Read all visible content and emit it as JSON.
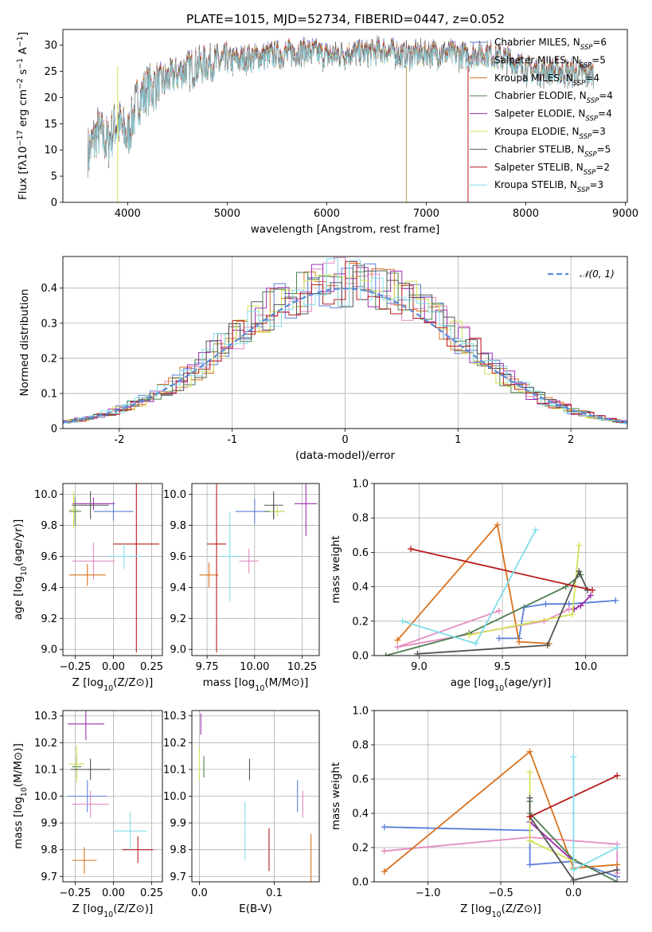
{
  "chart_data": [
    {
      "id": "spectrum",
      "type": "line",
      "title": "PLATE=1015, MJD=52734, FIBERID=0447, z=0.052",
      "xlabel": "wavelength [Angstrom, rest frame]",
      "ylabel": "Flux [fλ10⁻¹⁷ erg cm⁻² s⁻¹ A⁻¹]",
      "xlim": [
        3350,
        9020
      ],
      "ylim": [
        0,
        33
      ],
      "xticks": [
        4000,
        5000,
        6000,
        7000,
        8000,
        9000
      ],
      "yticks": [
        0,
        5,
        10,
        15,
        20,
        25,
        30
      ],
      "grid": false,
      "legend_position": "top-right",
      "continuum_x": [
        3600,
        3700,
        3800,
        3900,
        4000,
        4100,
        4200,
        4300,
        4400,
        4600,
        4800,
        5000,
        5200,
        5400,
        5600,
        5800,
        6000,
        6200,
        6400,
        6600,
        6800,
        7000,
        7200,
        7400,
        7600,
        7800,
        8000,
        8200,
        8400,
        8600
      ],
      "continuum_y": [
        10,
        14,
        12,
        16,
        13,
        20,
        22,
        23,
        24,
        26,
        27,
        27.5,
        28,
        28.5,
        29,
        29.5,
        28.5,
        29,
        29,
        29.5,
        28.5,
        29,
        29,
        28.5,
        29,
        28,
        26,
        25.5,
        25.5,
        25
      ],
      "series": [
        {
          "name": "Chabrier MILES, N$_{SSP}$=6",
          "label": "Chabrier MILES, N",
          "n_ssp": "6",
          "color": "#5b7fd8"
        },
        {
          "name": "Salpeter MILES, N$_{SSP}$=5",
          "label": "Salpeter MILES, N",
          "n_ssp": "5",
          "color": "#e38bc0"
        },
        {
          "name": "Kroupa MILES, N$_{SSP}$=4",
          "label": "Kroupa MILES, N",
          "n_ssp": "4",
          "color": "#d9731f"
        },
        {
          "name": "Chabrier ELODIE, N$_{SSP}$=4",
          "label": "Chabrier ELODIE, N",
          "n_ssp": "4",
          "color": "#4f7f4f"
        },
        {
          "name": "Salpeter ELODIE, N$_{SSP}$=4",
          "label": "Salpeter ELODIE, N",
          "n_ssp": "4",
          "color": "#9b2fae"
        },
        {
          "name": "Kroupa ELODIE, N$_{SSP}$=3",
          "label": "Kroupa ELODIE, N",
          "n_ssp": "3",
          "color": "#d4e157"
        },
        {
          "name": "Chabrier STELIB, N$_{SSP}$=5",
          "label": "Chabrier STELIB, N",
          "n_ssp": "5",
          "color": "#555555"
        },
        {
          "name": "Salpeter STELIB, N$_{SSP}$=2",
          "label": "Salpeter STELIB, N",
          "n_ssp": "2",
          "color": "#b71c1c"
        },
        {
          "name": "Kroupa STELIB, N$_{SSP}$=3",
          "label": "Kroupa STELIB, N",
          "n_ssp": "3",
          "color": "#80deea"
        }
      ],
      "legend_subscript": "SSP",
      "vertical_lines": [
        {
          "x": 3900,
          "color": "#d4e157"
        },
        {
          "x": 6800,
          "color": "#b5a642"
        },
        {
          "x": 7420,
          "color": "#b71c1c"
        }
      ]
    },
    {
      "id": "residuals",
      "type": "area",
      "xlabel": "(data-model)/error",
      "ylabel": "Normed distribution",
      "xlim": [
        -2.5,
        2.5
      ],
      "ylim": [
        0,
        0.49
      ],
      "xticks": [
        -2,
        -1,
        0,
        1,
        2
      ],
      "yticks": [
        0.0,
        0.1,
        0.2,
        0.3,
        0.4
      ],
      "grid": true,
      "legend_position": "top-right",
      "legend": "𝒩(0, 1)",
      "reference_curve": "normal pdf mean 0 sigma 1",
      "bin_width": 0.1
    },
    {
      "id": "z-age",
      "type": "scatter",
      "xlabel": "Z [log₁₀(Z/Z⊙)]",
      "ylabel": "age  [log₁₀(age/yr)]",
      "xlim": [
        -0.33,
        0.32
      ],
      "ylim": [
        8.96,
        10.07
      ],
      "xticks": [
        "−0.25",
        "0.00",
        "0.25"
      ],
      "xtick_values": [
        -0.25,
        0,
        0.25
      ],
      "yticks": [
        "9.0",
        "9.2",
        "9.4",
        "9.6",
        "9.8",
        "10.0"
      ],
      "ytick_values": [
        9.0,
        9.2,
        9.4,
        9.6,
        9.8,
        10.0
      ],
      "grid": true,
      "points": [
        {
          "x": 0.0,
          "y": 9.89,
          "xerr": 0.13,
          "yerr": 0.06,
          "color": "#5b7fd8"
        },
        {
          "x": -0.13,
          "y": 9.57,
          "xerr": 0.14,
          "yerr": 0.12,
          "color": "#e38bc0"
        },
        {
          "x": -0.17,
          "y": 9.48,
          "xerr": 0.12,
          "yerr": 0.07,
          "color": "#d9731f"
        },
        {
          "x": -0.25,
          "y": 9.89,
          "xerr": 0.04,
          "yerr": 0.09,
          "color": "#4f7f4f"
        },
        {
          "x": -0.13,
          "y": 9.94,
          "xerr": 0.14,
          "yerr": 0.04,
          "color": "#9b2fae"
        },
        {
          "x": -0.26,
          "y": 9.9,
          "xerr": 0.03,
          "yerr": 0.12,
          "color": "#d4e157"
        },
        {
          "x": -0.15,
          "y": 9.93,
          "xerr": 0.12,
          "yerr": 0.09,
          "color": "#555555"
        },
        {
          "x": 0.15,
          "y": 9.68,
          "xerr": 0.15,
          "yerr": 0.7,
          "color": "#b71c1c"
        },
        {
          "x": 0.07,
          "y": 9.6,
          "xerr": 0.11,
          "yerr": 0.08,
          "color": "#80deea"
        }
      ]
    },
    {
      "id": "mass-age",
      "type": "scatter",
      "xlabel": "mass [log₁₀(M/M⊙)]",
      "xlim": [
        9.67,
        10.34
      ],
      "ylim": [
        8.96,
        10.07
      ],
      "xticks": [
        "9.75",
        "10.00",
        "10.25"
      ],
      "xtick_values": [
        9.75,
        10.0,
        10.25
      ],
      "yticks": [
        "9.0",
        "9.2",
        "9.4",
        "9.6",
        "9.8",
        "10.0"
      ],
      "ytick_values": [
        9.0,
        9.2,
        9.4,
        9.6,
        9.8,
        10.0
      ],
      "grid": true,
      "points": [
        {
          "x": 10.0,
          "y": 9.89,
          "xerr": 0.1,
          "yerr": 0.08,
          "color": "#5b7fd8"
        },
        {
          "x": 9.97,
          "y": 9.57,
          "xerr": 0.05,
          "yerr": 0.08,
          "color": "#e38bc0"
        },
        {
          "x": 9.76,
          "y": 9.48,
          "xerr": 0.05,
          "yerr": 0.08,
          "color": "#d9731f"
        },
        {
          "x": 10.1,
          "y": 9.89,
          "xerr": 0.05,
          "yerr": 0.05,
          "color": "#4f7f4f"
        },
        {
          "x": 10.27,
          "y": 9.94,
          "xerr": 0.06,
          "yerr": 0.21,
          "color": "#9b2fae"
        },
        {
          "x": 10.12,
          "y": 9.89,
          "xerr": 0.04,
          "yerr": 0.03,
          "color": "#d4e157"
        },
        {
          "x": 10.1,
          "y": 9.93,
          "xerr": 0.05,
          "yerr": 0.09,
          "color": "#555555"
        },
        {
          "x": 9.8,
          "y": 9.68,
          "xerr": 0.05,
          "yerr": 0.7,
          "color": "#b71c1c"
        },
        {
          "x": 9.87,
          "y": 9.6,
          "xerr": 0.05,
          "yerr": 0.29,
          "color": "#80deea"
        }
      ]
    },
    {
      "id": "age-weight",
      "type": "line",
      "xlabel": "age  [log₁₀(age/yr)]",
      "ylabel": "mass weight",
      "xlim": [
        8.73,
        10.25
      ],
      "ylim": [
        0,
        1.0
      ],
      "xticks": [
        "9.0",
        "9.5",
        "10.0"
      ],
      "xtick_values": [
        9.0,
        9.5,
        10.0
      ],
      "yticks": [
        "0.0",
        "0.2",
        "0.4",
        "0.6",
        "0.8",
        "1.0"
      ],
      "ytick_values": [
        0,
        0.2,
        0.4,
        0.6,
        0.8,
        1.0
      ],
      "grid": true,
      "series": [
        {
          "color": "#5b7fd8",
          "x": [
            9.48,
            9.6,
            9.63,
            9.76,
            9.9,
            10.18
          ],
          "y": [
            0.1,
            0.1,
            0.28,
            0.3,
            0.3,
            0.32
          ]
        },
        {
          "color": "#e38bc0",
          "x": [
            9.48,
            8.87,
            9.75,
            9.9
          ],
          "y": [
            0.26,
            0.05,
            0.2,
            0.27
          ]
        },
        {
          "color": "#d9731f",
          "x": [
            8.87,
            9.47,
            9.6,
            9.78
          ],
          "y": [
            0.09,
            0.76,
            0.08,
            0.07
          ]
        },
        {
          "color": "#4f7f4f",
          "x": [
            8.8,
            9.3,
            9.88,
            9.97
          ],
          "y": [
            0.0,
            0.13,
            0.4,
            0.47
          ]
        },
        {
          "color": "#9b2fae",
          "x": [
            9.93,
            9.97,
            10.03
          ],
          "y": [
            0.27,
            0.29,
            0.35
          ]
        },
        {
          "color": "#d4e157",
          "x": [
            9.3,
            9.92,
            9.96
          ],
          "y": [
            0.12,
            0.24,
            0.64
          ]
        },
        {
          "color": "#555555",
          "x": [
            8.99,
            9.77,
            9.96,
            10.01
          ],
          "y": [
            0.01,
            0.06,
            0.49,
            0.38
          ]
        },
        {
          "color": "#b71c1c",
          "x": [
            8.95,
            10.04
          ],
          "y": [
            0.62,
            0.38
          ]
        },
        {
          "color": "#80deea",
          "x": [
            8.9,
            9.34,
            9.7
          ],
          "y": [
            0.2,
            0.07,
            0.73
          ]
        }
      ]
    },
    {
      "id": "z-mass",
      "type": "scatter",
      "xlabel": "Z [log₁₀(Z/Z⊙)]",
      "ylabel": "mass [log₁₀(M/M⊙)]",
      "xlim": [
        -0.33,
        0.32
      ],
      "ylim": [
        9.68,
        10.32
      ],
      "xticks": [
        "−0.25",
        "0.00",
        "0.25"
      ],
      "xtick_values": [
        -0.25,
        0,
        0.25
      ],
      "yticks": [
        "9.7",
        "9.8",
        "9.9",
        "10.0",
        "10.1",
        "10.2",
        "10.3"
      ],
      "ytick_values": [
        9.7,
        9.8,
        9.9,
        10.0,
        10.1,
        10.2,
        10.3
      ],
      "grid": true,
      "points": [
        {
          "x": -0.17,
          "y": 10.0,
          "xerr": 0.13,
          "yerr": 0.06,
          "color": "#5b7fd8"
        },
        {
          "x": -0.15,
          "y": 9.97,
          "xerr": 0.12,
          "yerr": 0.05,
          "color": "#e38bc0"
        },
        {
          "x": -0.19,
          "y": 9.76,
          "xerr": 0.08,
          "yerr": 0.05,
          "color": "#d9731f"
        },
        {
          "x": -0.24,
          "y": 10.11,
          "xerr": 0.03,
          "yerr": 0.04,
          "color": "#4f7f4f"
        },
        {
          "x": -0.18,
          "y": 10.27,
          "xerr": 0.12,
          "yerr": 0.06,
          "color": "#9b2fae"
        },
        {
          "x": -0.24,
          "y": 10.12,
          "xerr": 0.05,
          "yerr": 0.07,
          "color": "#d4e157"
        },
        {
          "x": -0.15,
          "y": 10.1,
          "xerr": 0.13,
          "yerr": 0.04,
          "color": "#555555"
        },
        {
          "x": 0.16,
          "y": 9.8,
          "xerr": 0.1,
          "yerr": 0.05,
          "color": "#b71c1c"
        },
        {
          "x": 0.11,
          "y": 9.87,
          "xerr": 0.11,
          "yerr": 0.07,
          "color": "#80deea"
        }
      ]
    },
    {
      "id": "ebv-mass",
      "type": "scatter",
      "xlabel": "E(B-V)",
      "xlim": [
        -0.01,
        0.16
      ],
      "ylim": [
        9.68,
        10.32
      ],
      "xticks": [
        "0.0",
        "0.1"
      ],
      "xtick_values": [
        0.0,
        0.1
      ],
      "yticks": [
        "9.7",
        "9.8",
        "9.9",
        "10.0",
        "10.1",
        "10.2",
        "10.3"
      ],
      "ytick_values": [
        9.7,
        9.8,
        9.9,
        10.0,
        10.1,
        10.2,
        10.3
      ],
      "grid": true,
      "points": [
        {
          "x": 0.131,
          "y": 10.0,
          "xerr": 0,
          "yerr": 0.06,
          "color": "#5b7fd8"
        },
        {
          "x": 0.138,
          "y": 9.97,
          "xerr": 0,
          "yerr": 0.05,
          "color": "#e38bc0"
        },
        {
          "x": 0.149,
          "y": 9.76,
          "xerr": 0,
          "yerr": 0.1,
          "color": "#d9731f"
        },
        {
          "x": 0.006,
          "y": 10.11,
          "xerr": 0,
          "yerr": 0.04,
          "color": "#4f7f4f"
        },
        {
          "x": 0.002,
          "y": 10.27,
          "xerr": 0,
          "yerr": 0.04,
          "color": "#9b2fae"
        },
        {
          "x": 0.0,
          "y": 10.12,
          "xerr": 0,
          "yerr": 0.06,
          "color": "#d4e157"
        },
        {
          "x": 0.067,
          "y": 10.1,
          "xerr": 0,
          "yerr": 0.04,
          "color": "#555555"
        },
        {
          "x": 0.093,
          "y": 9.8,
          "xerr": 0,
          "yerr": 0.08,
          "color": "#b71c1c"
        },
        {
          "x": 0.061,
          "y": 9.87,
          "xerr": 0,
          "yerr": 0.11,
          "color": "#80deea"
        }
      ]
    },
    {
      "id": "z-weight",
      "type": "line",
      "xlabel": "Z [log₁₀(Z/Z⊙)]",
      "ylabel": "mass weight",
      "xlim": [
        -1.37,
        0.37
      ],
      "ylim": [
        0,
        1.0
      ],
      "xticks": [
        "−1.0",
        "−0.5",
        "0.0"
      ],
      "xtick_values": [
        -1.0,
        -0.5,
        0.0
      ],
      "yticks": [
        "0.0",
        "0.2",
        "0.4",
        "0.6",
        "0.8",
        "1.0"
      ],
      "ytick_values": [
        0,
        0.2,
        0.4,
        0.6,
        0.8,
        1.0
      ],
      "grid": true,
      "series": [
        {
          "color": "#5b7fd8",
          "x": [
            -1.3,
            -0.3,
            -0.3,
            0.0,
            0.3
          ],
          "y": [
            0.32,
            0.3,
            0.1,
            0.12,
            0.03
          ]
        },
        {
          "color": "#e38bc0",
          "x": [
            -1.3,
            -0.3,
            0.3,
            0.3
          ],
          "y": [
            0.18,
            0.26,
            0.22,
            0.05
          ]
        },
        {
          "color": "#d9731f",
          "x": [
            -1.3,
            -0.3,
            0.0,
            0.3
          ],
          "y": [
            0.06,
            0.76,
            0.08,
            0.1
          ]
        },
        {
          "color": "#4f7f4f",
          "x": [
            -0.3,
            -0.3,
            0.0,
            0.3
          ],
          "y": [
            0.47,
            0.4,
            0.13,
            0.0
          ]
        },
        {
          "color": "#9b2fae",
          "x": [
            -0.3,
            0.0
          ],
          "y": [
            0.35,
            0.12
          ]
        },
        {
          "color": "#d4e157",
          "x": [
            -0.3,
            -0.3,
            0.0
          ],
          "y": [
            0.64,
            0.24,
            0.12
          ]
        },
        {
          "color": "#555555",
          "x": [
            -0.3,
            -0.3,
            0.0,
            0.3
          ],
          "y": [
            0.49,
            0.38,
            0.01,
            0.07
          ]
        },
        {
          "color": "#b71c1c",
          "x": [
            -0.3,
            0.3
          ],
          "y": [
            0.38,
            0.62
          ]
        },
        {
          "color": "#80deea",
          "x": [
            0.0,
            0.0,
            0.3
          ],
          "y": [
            0.73,
            0.07,
            0.2
          ]
        }
      ]
    }
  ]
}
